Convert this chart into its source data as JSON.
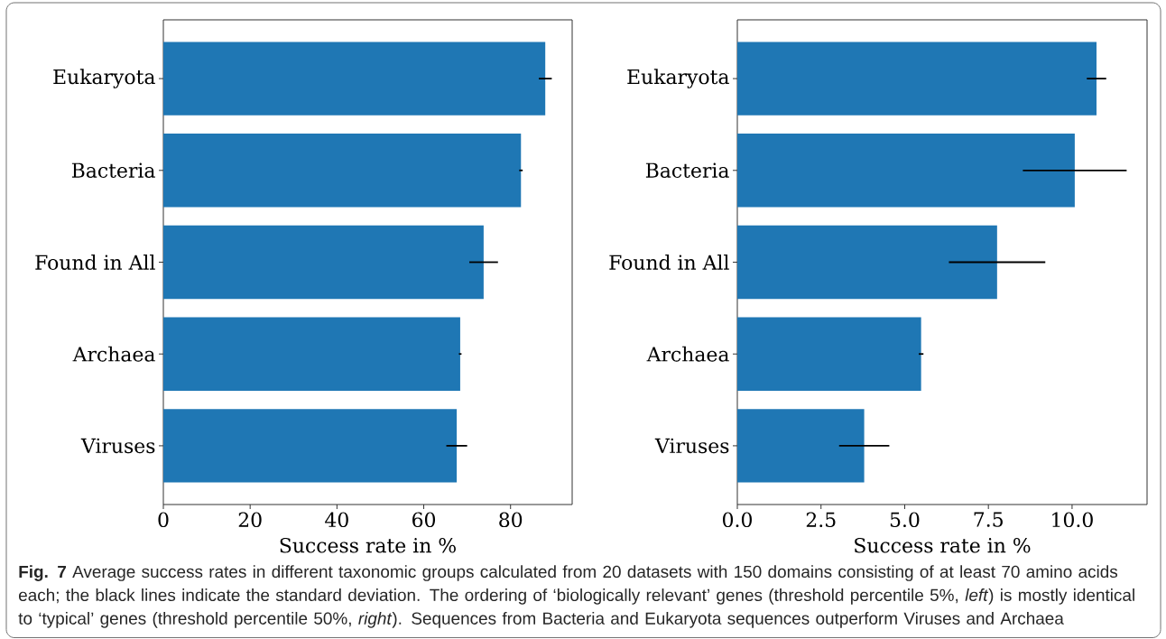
{
  "chart_data": [
    {
      "type": "bar",
      "orientation": "horizontal",
      "categories": [
        "Eukaryota",
        "Bacteria",
        "Found in All",
        "Archaea",
        "Viruses"
      ],
      "values": [
        88.0,
        82.4,
        73.8,
        68.4,
        67.6
      ],
      "errors": [
        1.5,
        0.4,
        3.3,
        0.3,
        2.4
      ],
      "color": "#1f77b4",
      "xlabel": "Success rate in %",
      "xlim": [
        0,
        94.2
      ],
      "xticks": [
        0,
        20,
        40,
        60,
        80
      ],
      "annotations": [
        "**Fig. 7** Average success rates in different taxonomic groups calculated from 20 datasets with 150 domains consisting of at least 70 amino acids each; the black lines indicate the standard deviation. The ordering of ‘biologically relevant’ genes (threshold percentile 5%, *left*) is mostly identical to ‘typical’ genes (threshold percentile 50%, *right*). Sequences from Bacteria and Eukaryota sequences outperform Viruses and Archaea"
      ]
    },
    {
      "type": "bar",
      "orientation": "horizontal",
      "categories": [
        "Eukaryota",
        "Bacteria",
        "Found in All",
        "Archaea",
        "Viruses"
      ],
      "values": [
        10.73,
        10.08,
        7.76,
        5.49,
        3.79
      ],
      "errors": [
        0.29,
        1.55,
        1.44,
        0.07,
        0.75
      ],
      "color": "#1f77b4",
      "xlabel": "Success rate in %",
      "xlim": [
        0,
        12.24
      ],
      "xticks": [
        {
          "value": 0,
          "label": "0.0"
        },
        2.5,
        {
          "value": 5,
          "label": "5.0"
        },
        7.5,
        {
          "value": 10,
          "label": "10.0"
        }
      ]
    }
  ]
}
